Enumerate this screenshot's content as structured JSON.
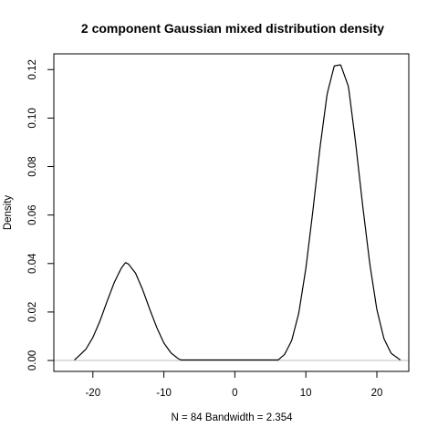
{
  "chart_data": {
    "type": "line",
    "title": "2 component Gaussian mixed distribution density",
    "xlabel": "N = 84   Bandwidth = 2.354",
    "ylabel": "Density",
    "xlim": [
      -25.5,
      24.5
    ],
    "ylim": [
      -0.0045,
      0.1265
    ],
    "x_ticks": [
      -20,
      -10,
      0,
      10,
      20
    ],
    "x_tick_labels": [
      "-20",
      "-10",
      "0",
      "10",
      "20"
    ],
    "y_ticks": [
      0.0,
      0.02,
      0.04,
      0.06,
      0.08,
      0.1,
      0.12
    ],
    "y_tick_labels": [
      "0.00",
      "0.02",
      "0.04",
      "0.06",
      "0.08",
      "0.10",
      "0.12"
    ],
    "grid": false,
    "legend": "none",
    "baseline": 0,
    "colors": {
      "line": "#000000",
      "baseline": "#bebebe",
      "frame": "#000000",
      "background": "#ffffff"
    },
    "series": [
      {
        "x": [
          -22.6,
          -22,
          -21,
          -20,
          -19,
          -18,
          -17,
          -16,
          -15.4,
          -15,
          -14,
          -13,
          -12,
          -11,
          -10,
          -9,
          -8,
          -7.6,
          6.1,
          7,
          8,
          9,
          10,
          11,
          12,
          13,
          14,
          14.9,
          16,
          17,
          18,
          19,
          20,
          21,
          22,
          23.3
        ],
        "values": [
          0.0002,
          0.0018,
          0.0046,
          0.0095,
          0.0163,
          0.0244,
          0.0321,
          0.0381,
          0.0404,
          0.0398,
          0.0361,
          0.0293,
          0.0212,
          0.0136,
          0.0072,
          0.0031,
          0.0008,
          0.0002,
          0.0002,
          0.0025,
          0.0082,
          0.0195,
          0.038,
          0.062,
          0.088,
          0.11,
          0.1215,
          0.122,
          0.113,
          0.09,
          0.064,
          0.04,
          0.021,
          0.009,
          0.003,
          0.0002
        ]
      }
    ]
  }
}
